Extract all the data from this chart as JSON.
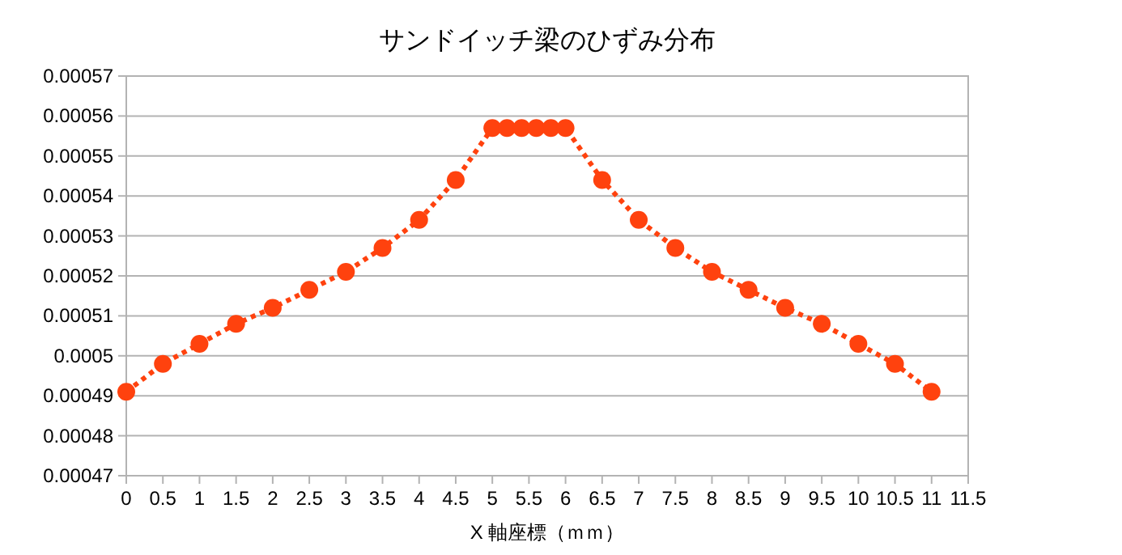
{
  "chart_data": {
    "type": "line",
    "title": "サンドイッチ梁のひずみ分布",
    "xlabel": "X 軸座標（ｍｍ）",
    "x": [
      0,
      0.5,
      1,
      1.5,
      2,
      2.5,
      3,
      3.5,
      4,
      4.5,
      5,
      5.2,
      5.4,
      5.6,
      5.8,
      6,
      6.5,
      7,
      7.5,
      8,
      8.5,
      9,
      9.5,
      10,
      10.5,
      11
    ],
    "series": [
      {
        "color": "#ff420e",
        "values": [
          0.000491,
          0.000498,
          0.000503,
          0.000508,
          0.000512,
          0.0005165,
          0.000521,
          0.000527,
          0.000534,
          0.000544,
          0.000557,
          0.000557,
          0.000557,
          0.000557,
          0.000557,
          0.000557,
          0.000544,
          0.000534,
          0.000527,
          0.000521,
          0.0005165,
          0.000512,
          0.000508,
          0.000503,
          0.000498,
          0.000491
        ]
      }
    ],
    "xlim": [
      0,
      11.5
    ],
    "ylim": [
      0.00047,
      0.00057
    ],
    "xticks": [
      0,
      0.5,
      1,
      1.5,
      2,
      2.5,
      3,
      3.5,
      4,
      4.5,
      5,
      5.5,
      6,
      6.5,
      7,
      7.5,
      8,
      8.5,
      9,
      9.5,
      10,
      10.5,
      11,
      11.5
    ],
    "yticks": [
      0.00047,
      0.00048,
      0.00049,
      0.0005,
      0.00051,
      0.00052,
      0.00053,
      0.00054,
      0.00055,
      0.00056,
      0.00057
    ],
    "grid": "y",
    "marker": "circle",
    "line_style": "dotted"
  }
}
